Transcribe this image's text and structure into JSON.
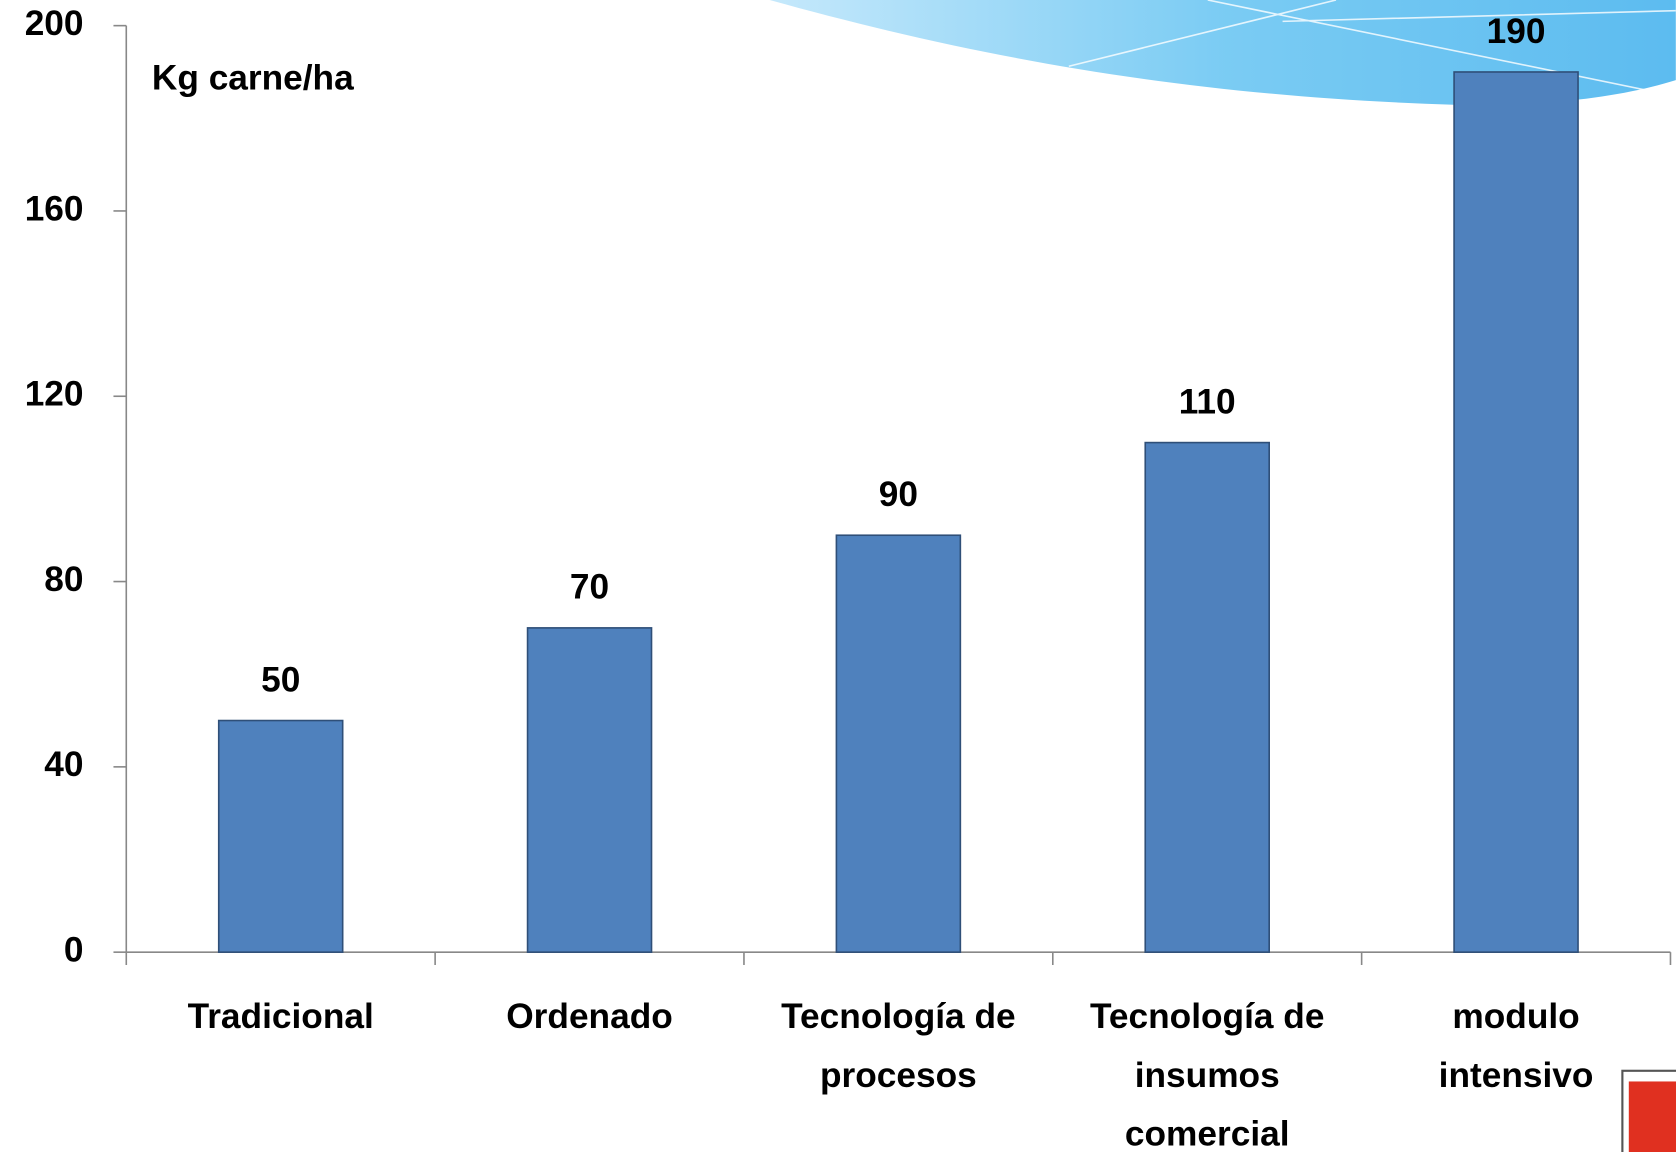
{
  "chart_data": {
    "type": "bar",
    "annotation": "Kg carne/ha",
    "categories": [
      "Tradicional",
      "Ordenado",
      "Tecnología de procesos",
      "Tecnología de insumos comercial",
      "modulo intensivo"
    ],
    "values": [
      50,
      70,
      90,
      110,
      190
    ],
    "color": "#4f81bd",
    "ylim": [
      0,
      200
    ],
    "yticks": [
      0,
      40,
      80,
      120,
      160,
      200
    ],
    "grid": false
  }
}
